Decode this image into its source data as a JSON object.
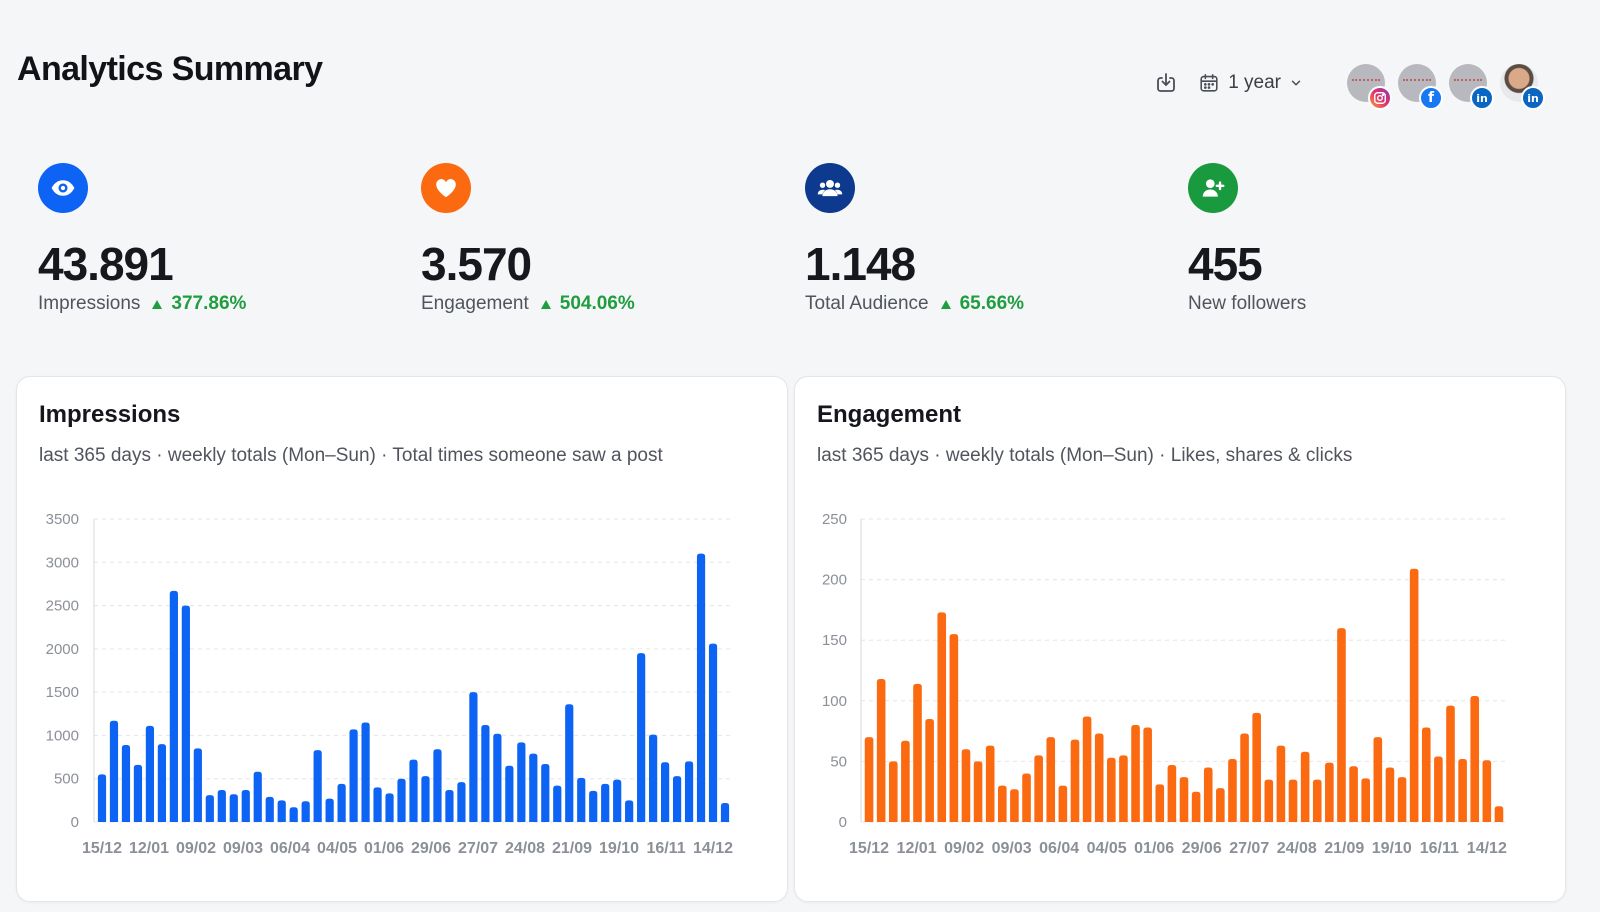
{
  "header": {
    "title": "Analytics Summary",
    "period_label": "1 year",
    "accounts": [
      {
        "network": "instagram",
        "badge": "",
        "kind": "brand"
      },
      {
        "network": "facebook",
        "badge": "f",
        "kind": "brand"
      },
      {
        "network": "linkedin",
        "badge": "in",
        "kind": "brand"
      },
      {
        "network": "linkedin",
        "badge": "in",
        "kind": "photo"
      }
    ]
  },
  "stats": [
    {
      "value": "43.891",
      "label": "Impressions",
      "change": "377.86%",
      "color": "#0d63f3",
      "icon": "eye-icon"
    },
    {
      "value": "3.570",
      "label": "Engagement",
      "change": "504.06%",
      "color": "#fb6a10",
      "icon": "heart-icon"
    },
    {
      "value": "1.148",
      "label": "Total Audience",
      "change": "65.66%",
      "color": "#0d3a8f",
      "icon": "users-icon"
    },
    {
      "value": "455",
      "label": "New followers",
      "change": "",
      "color": "#1a9a3e",
      "icon": "user-plus-icon"
    }
  ],
  "colors": {
    "up": "#1f9d3f",
    "impressions_bar": "#0d63f3",
    "engagement_bar": "#fb6a10"
  },
  "chart_data": [
    {
      "type": "bar",
      "title": "Impressions",
      "subtitle": "last 365 days · weekly totals (Mon–Sun) · Total times someone saw a post",
      "ylim": [
        0,
        3500
      ],
      "yticks": [
        0,
        500,
        1000,
        1500,
        2000,
        2500,
        3000,
        3500
      ],
      "xtick_labels": [
        "15/12",
        "12/01",
        "09/02",
        "09/03",
        "06/04",
        "04/05",
        "01/06",
        "29/06",
        "27/07",
        "24/08",
        "21/09",
        "19/10",
        "16/11",
        "14/12"
      ],
      "values": [
        550,
        1170,
        890,
        660,
        1110,
        900,
        2670,
        2500,
        850,
        310,
        370,
        320,
        370,
        580,
        290,
        250,
        170,
        240,
        830,
        270,
        440,
        1070,
        1150,
        400,
        330,
        500,
        720,
        530,
        840,
        370,
        460,
        1500,
        1120,
        1020,
        650,
        920,
        790,
        670,
        420,
        1360,
        510,
        360,
        440,
        490,
        250,
        1950,
        1010,
        690,
        530,
        700,
        3100,
        2060,
        220
      ]
    },
    {
      "type": "bar",
      "title": "Engagement",
      "subtitle": "last 365 days · weekly totals (Mon–Sun) · Likes, shares & clicks",
      "ylim": [
        0,
        250
      ],
      "yticks": [
        0,
        50,
        100,
        150,
        200,
        250
      ],
      "xtick_labels": [
        "15/12",
        "12/01",
        "09/02",
        "09/03",
        "06/04",
        "04/05",
        "01/06",
        "29/06",
        "27/07",
        "24/08",
        "21/09",
        "19/10",
        "16/11",
        "14/12"
      ],
      "values": [
        70,
        118,
        50,
        67,
        114,
        85,
        173,
        155,
        60,
        50,
        63,
        30,
        27,
        40,
        55,
        70,
        30,
        68,
        87,
        73,
        53,
        55,
        80,
        78,
        31,
        47,
        37,
        25,
        45,
        28,
        52,
        73,
        90,
        35,
        63,
        35,
        58,
        35,
        49,
        160,
        46,
        36,
        70,
        45,
        37,
        209,
        78,
        54,
        96,
        52,
        104,
        51,
        13
      ]
    }
  ]
}
